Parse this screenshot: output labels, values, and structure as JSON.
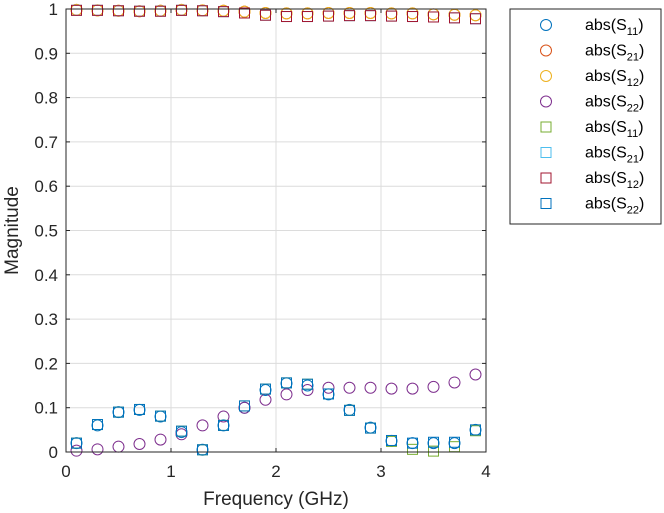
{
  "chart_data": {
    "type": "scatter",
    "xlabel": "Frequency (GHz)",
    "ylabel": "Magnitude",
    "xlim": [
      0,
      4
    ],
    "ylim": [
      0,
      1
    ],
    "xticks": [
      "0",
      "1",
      "2",
      "3",
      "4"
    ],
    "yticks": [
      "0",
      "0.1",
      "0.2",
      "0.3",
      "0.4",
      "0.5",
      "0.6",
      "0.7",
      "0.8",
      "0.9",
      "1"
    ],
    "grid": true,
    "legend_position": "outside-right",
    "x": [
      0.1,
      0.3,
      0.5,
      0.7,
      0.9,
      1.1,
      1.3,
      1.5,
      1.7,
      1.9,
      2.1,
      2.3,
      2.5,
      2.7,
      2.9,
      3.1,
      3.3,
      3.5,
      3.7,
      3.9
    ],
    "series": [
      {
        "name_base": "abs(S",
        "name_sub": "11",
        "name_end": ")",
        "marker": "circle",
        "color": "#0072BD",
        "values": [
          0.02,
          0.06,
          0.09,
          0.095,
          0.08,
          0.045,
          0.005,
          0.06,
          0.1,
          0.14,
          0.155,
          0.15,
          0.13,
          0.095,
          0.055,
          0.025,
          0.02,
          0.02,
          0.02,
          0.05
        ]
      },
      {
        "name_base": "abs(S",
        "name_sub": "21",
        "name_end": ")",
        "marker": "circle",
        "color": "#D95319",
        "values": [
          0.998,
          0.997,
          0.996,
          0.995,
          0.996,
          0.998,
          0.997,
          0.996,
          0.994,
          0.991,
          0.99,
          0.99,
          0.991,
          0.991,
          0.991,
          0.99,
          0.99,
          0.988,
          0.987,
          0.986
        ]
      },
      {
        "name_base": "abs(S",
        "name_sub": "12",
        "name_end": ")",
        "marker": "circle",
        "color": "#EDB120",
        "values": [
          0.998,
          0.997,
          0.996,
          0.995,
          0.996,
          0.998,
          0.997,
          0.996,
          0.994,
          0.991,
          0.99,
          0.99,
          0.991,
          0.991,
          0.991,
          0.99,
          0.99,
          0.988,
          0.987,
          0.986
        ]
      },
      {
        "name_base": "abs(S",
        "name_sub": "22",
        "name_end": ")",
        "marker": "circle",
        "color": "#7E2F8E",
        "values": [
          0.003,
          0.006,
          0.012,
          0.018,
          0.028,
          0.04,
          0.06,
          0.08,
          0.1,
          0.118,
          0.13,
          0.14,
          0.145,
          0.145,
          0.145,
          0.143,
          0.143,
          0.147,
          0.157,
          0.175
        ]
      },
      {
        "name_base": "abs(S",
        "name_sub": "11",
        "name_end": ")",
        "marker": "square",
        "color": "#77AC30",
        "values": [
          0.02,
          0.062,
          0.09,
          0.096,
          0.081,
          0.047,
          0.005,
          0.06,
          0.104,
          0.142,
          0.156,
          0.153,
          0.131,
          0.094,
          0.054,
          0.024,
          0.006,
          0.002,
          0.012,
          0.048
        ]
      },
      {
        "name_base": "abs(S",
        "name_sub": "21",
        "name_end": ")",
        "marker": "square",
        "color": "#4DBEEE",
        "values": [
          0.997,
          0.997,
          0.996,
          0.995,
          0.995,
          0.997,
          0.996,
          0.994,
          0.991,
          0.986,
          0.983,
          0.983,
          0.984,
          0.985,
          0.985,
          0.984,
          0.983,
          0.982,
          0.98,
          0.978
        ]
      },
      {
        "name_base": "abs(S",
        "name_sub": "12",
        "name_end": ")",
        "marker": "square",
        "color": "#A2142F",
        "values": [
          0.997,
          0.997,
          0.996,
          0.995,
          0.995,
          0.997,
          0.996,
          0.994,
          0.991,
          0.986,
          0.983,
          0.983,
          0.984,
          0.985,
          0.985,
          0.984,
          0.983,
          0.982,
          0.98,
          0.978
        ]
      },
      {
        "name_base": "abs(S",
        "name_sub": "22",
        "name_end": ")",
        "marker": "square",
        "color": "#0072BD",
        "values": [
          0.02,
          0.062,
          0.09,
          0.096,
          0.081,
          0.047,
          0.005,
          0.06,
          0.104,
          0.142,
          0.156,
          0.153,
          0.131,
          0.094,
          0.054,
          0.026,
          0.02,
          0.022,
          0.022,
          0.05
        ]
      }
    ]
  }
}
